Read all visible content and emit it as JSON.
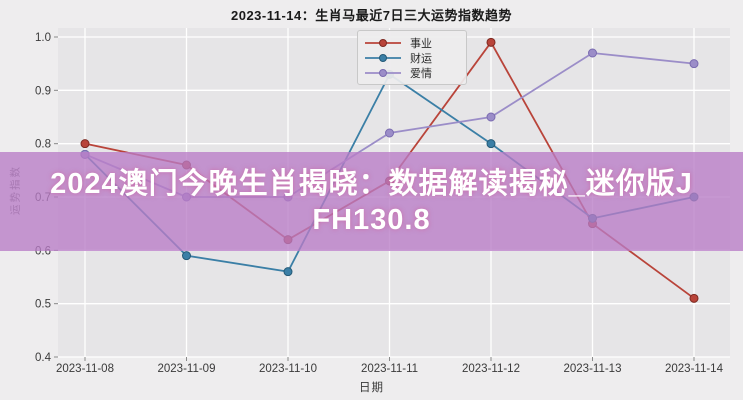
{
  "overlay": {
    "line1": "2024澳门今晚生肖揭晓：数据解读揭秘_迷你版J",
    "line2": "FH130.8",
    "background_color": "#b97cc7",
    "text_color": "#ffffff"
  },
  "chart_data": {
    "type": "line",
    "title": "2023-11-14：生肖马最近7日三大运势指数趋势",
    "xlabel": "日期",
    "ylabel": "运势指数",
    "categories": [
      "2023-11-08",
      "2023-11-09",
      "2023-11-10",
      "2023-11-11",
      "2023-11-12",
      "2023-11-13",
      "2023-11-14"
    ],
    "ylim": [
      0.4,
      1.0
    ],
    "yticks": [
      1.0,
      0.9,
      0.8,
      0.7,
      0.6,
      0.5,
      0.4
    ],
    "grid": true,
    "grid_color": "#ffffff",
    "plot_background": "#e6e5e7",
    "figure_background": "#eeedee",
    "legend_position": "upper center-left",
    "series": [
      {
        "name": "事业",
        "color": "#b9443a",
        "marker_edge": "#7e2a22",
        "values": [
          0.8,
          0.76,
          0.62,
          0.73,
          0.99,
          0.65,
          0.51
        ]
      },
      {
        "name": "财运",
        "color": "#3b7fa6",
        "marker_edge": "#255a77",
        "values": [
          0.78,
          0.59,
          0.56,
          0.93,
          0.8,
          0.66,
          0.7
        ]
      },
      {
        "name": "爱情",
        "color": "#9b8dc8",
        "marker_edge": "#7a6bb0",
        "values": [
          0.78,
          0.7,
          0.7,
          0.82,
          0.85,
          0.97,
          0.95
        ]
      }
    ]
  }
}
